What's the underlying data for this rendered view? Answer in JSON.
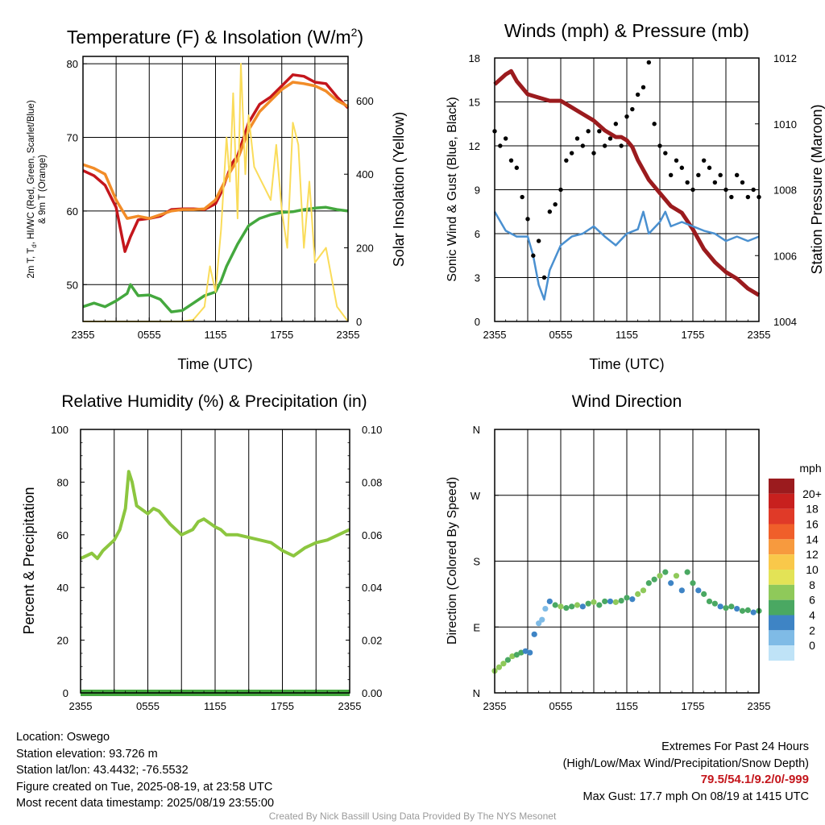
{
  "charts": {
    "temperature": {
      "title": "Temperature (F) & Insolation (W/m",
      "title_sup": "2",
      "title_close": ")",
      "left_axis_label_line1": "2m T, T",
      "left_axis_label_sub": "d",
      "left_axis_label_line1_rest": ", HI/WC (Red, Green, Scarlet/Blue)",
      "left_axis_label_line2": "& 9m T (Orange)",
      "right_axis_label": "Solar Insolation (Yellow)",
      "xlabel": "Time (UTC)"
    },
    "winds": {
      "title": "Winds (mph) & Pressure (mb)",
      "left_axis_label": "Sonic Wind & Gust (Blue, Black)",
      "right_axis_label": "Station Pressure (Maroon)",
      "xlabel": "Time (UTC)"
    },
    "humidity": {
      "title": "Relative Humidity (%) & Precipitation (in)",
      "left_axis_label": "Percent & Precipitation"
    },
    "direction": {
      "title": "Wind Direction",
      "left_axis_label": "Direction (Colored By Speed)",
      "legend_title": "mph",
      "legend_labels": [
        "20+",
        "18",
        "16",
        "14",
        "12",
        "10",
        "8",
        "6",
        "4",
        "2",
        "0"
      ],
      "legend_colors": [
        "#9b1b1e",
        "#c8201e",
        "#e03a28",
        "#f05f2a",
        "#f79a3e",
        "#f9c84a",
        "#e3e356",
        "#8fc95a",
        "#4aa862",
        "#3e84c5",
        "#7fbbe6",
        "#bfe3f7"
      ]
    }
  },
  "chart_data": [
    {
      "type": "line",
      "title": "Temperature (F) & Insolation (W/m2)",
      "xlabel": "Time (UTC)",
      "x_ticks": [
        "2355",
        "0555",
        "1155",
        "1755",
        "2355"
      ],
      "x_range_hours": [
        0,
        24
      ],
      "y_left": {
        "range": [
          45,
          81
        ],
        "ticks": [
          50,
          60,
          70,
          80
        ]
      },
      "y_right": {
        "label": "Solar Insolation (Yellow)",
        "range": [
          0,
          720
        ],
        "ticks": [
          0,
          200,
          400,
          600
        ]
      },
      "series": [
        {
          "color": "#c4161c",
          "axis": "left",
          "x": [
            0,
            1,
            2,
            3,
            3.8,
            4.3,
            5,
            6,
            7,
            8,
            9,
            10,
            11,
            12,
            12.5,
            13,
            13.5,
            14,
            15,
            16,
            17,
            18,
            19,
            20,
            21,
            22,
            23,
            24
          ],
          "y": [
            65.5,
            64.8,
            63.5,
            60.5,
            54.5,
            56.5,
            58.8,
            59.0,
            59.3,
            60.2,
            60.3,
            60.3,
            60.2,
            61.0,
            62.5,
            64.5,
            66.5,
            67.5,
            72.0,
            74.5,
            75.5,
            77.0,
            78.5,
            78.3,
            77.5,
            77.3,
            75.5,
            74.0
          ]
        },
        {
          "color": "#f28c28",
          "axis": "left",
          "x": [
            0,
            1,
            2,
            3,
            4,
            5,
            6,
            7,
            8,
            9,
            10,
            11,
            12,
            13,
            14,
            15,
            16,
            17,
            18,
            19,
            20,
            21,
            22,
            23,
            24
          ],
          "y": [
            66.3,
            65.8,
            65.0,
            61.5,
            59.0,
            59.3,
            59.0,
            59.5,
            60.0,
            60.2,
            60.2,
            60.3,
            61.5,
            64.5,
            67.0,
            71.0,
            73.5,
            75.0,
            76.5,
            77.5,
            77.3,
            77.0,
            76.3,
            75.0,
            74.2
          ]
        },
        {
          "color": "#44a83e",
          "axis": "left",
          "x": [
            0,
            1,
            2,
            3,
            4,
            4.3,
            5,
            6,
            7,
            8,
            9,
            10,
            11,
            12,
            12.5,
            13,
            14,
            15,
            16,
            17,
            18,
            19,
            20,
            21,
            22,
            23,
            24
          ],
          "y": [
            47.0,
            47.5,
            47.0,
            47.8,
            48.8,
            50.0,
            48.5,
            48.6,
            48.0,
            46.3,
            46.5,
            47.5,
            48.5,
            49.0,
            50.5,
            52.5,
            55.5,
            58.0,
            59.0,
            59.5,
            59.8,
            59.9,
            60.2,
            60.4,
            60.5,
            60.2,
            60.0
          ]
        },
        {
          "color": "#fadc5a",
          "axis": "right",
          "x": [
            0,
            9,
            10,
            11,
            11.5,
            12,
            12.5,
            13,
            13.3,
            13.6,
            14,
            14.3,
            14.7,
            15,
            15.5,
            16,
            16.5,
            17,
            17.5,
            18,
            18.5,
            19,
            19.5,
            20,
            20.5,
            21,
            22,
            23,
            24
          ],
          "y": [
            0,
            0,
            5,
            40,
            150,
            80,
            250,
            500,
            380,
            620,
            280,
            700,
            400,
            560,
            420,
            390,
            360,
            330,
            480,
            300,
            200,
            540,
            480,
            200,
            380,
            160,
            200,
            40,
            0
          ]
        }
      ]
    },
    {
      "type": "line",
      "title": "Winds (mph) & Pressure (mb)",
      "xlabel": "Time (UTC)",
      "x_ticks": [
        "2355",
        "0555",
        "1155",
        "1755",
        "2355"
      ],
      "x_range_hours": [
        0,
        24
      ],
      "y_left": {
        "label": "Sonic Wind & Gust (Blue, Black)",
        "range": [
          0,
          18
        ],
        "ticks": [
          0,
          3,
          6,
          9,
          12,
          15,
          18
        ]
      },
      "y_right": {
        "label": "Station Pressure (Maroon)",
        "range": [
          1004,
          1012
        ],
        "ticks": [
          1004,
          1006,
          1008,
          1010,
          1012
        ]
      },
      "series": [
        {
          "color": "#9b1b1e",
          "axis": "right",
          "x": [
            0,
            1,
            1.5,
            2,
            3,
            4,
            5,
            6,
            7,
            8,
            9,
            10,
            11,
            11.5,
            12,
            12.5,
            13,
            14,
            15,
            16,
            17,
            18,
            19,
            20,
            21,
            22,
            23,
            24
          ],
          "y": [
            1011.2,
            1011.5,
            1011.6,
            1011.3,
            1010.9,
            1010.8,
            1010.7,
            1010.7,
            1010.5,
            1010.3,
            1010.1,
            1009.8,
            1009.6,
            1009.6,
            1009.5,
            1009.3,
            1008.9,
            1008.3,
            1007.9,
            1007.5,
            1007.3,
            1006.8,
            1006.2,
            1005.8,
            1005.5,
            1005.3,
            1005.0,
            1004.8
          ]
        },
        {
          "color": "#4a90d0",
          "axis": "left",
          "x": [
            0,
            1,
            2,
            3,
            3.5,
            4,
            4.5,
            5,
            6,
            7,
            8,
            9,
            10,
            11,
            12,
            13,
            13.5,
            14,
            15,
            15.5,
            16,
            17,
            18,
            19,
            20,
            21,
            22,
            23,
            24
          ],
          "y": [
            7.5,
            6.2,
            5.8,
            5.8,
            4.5,
            2.5,
            1.5,
            3.5,
            5.2,
            5.8,
            6.0,
            6.5,
            5.8,
            5.2,
            6.0,
            6.3,
            7.5,
            6.0,
            6.8,
            7.5,
            6.5,
            6.8,
            6.5,
            6.2,
            6.0,
            5.5,
            5.8,
            5.5,
            5.8
          ]
        },
        {
          "color": "#000000",
          "axis": "left",
          "kind": "scatter",
          "name": "gust",
          "x": [
            0,
            0.5,
            1,
            1.5,
            2,
            2.5,
            3,
            3.5,
            4,
            4.5,
            5,
            5.5,
            6,
            6.5,
            7,
            7.5,
            8,
            8.5,
            9,
            9.5,
            10,
            10.5,
            11,
            11.5,
            12,
            12.5,
            13,
            13.5,
            14,
            14.5,
            15,
            15.5,
            16,
            16.5,
            17,
            17.5,
            18,
            18.5,
            19,
            19.5,
            20,
            20.5,
            21,
            21.5,
            22,
            22.5,
            23,
            23.5,
            24
          ],
          "y": [
            13,
            12,
            12.5,
            11,
            10.5,
            8.5,
            7,
            4.5,
            5.5,
            3,
            7.5,
            8,
            9,
            11,
            11.5,
            12.5,
            12,
            13,
            11.5,
            13,
            12,
            12.5,
            13.5,
            12,
            14,
            14.5,
            15.5,
            16,
            17.7,
            13.5,
            12,
            11.5,
            10,
            11,
            10.5,
            9.5,
            9,
            10,
            11,
            10.5,
            9.5,
            10,
            9,
            8.5,
            10,
            9.5,
            8.5,
            9,
            8.5
          ]
        }
      ]
    },
    {
      "type": "line",
      "title": "Relative Humidity (%) & Precipitation (in)",
      "x_ticks": [
        "2355",
        "0555",
        "1155",
        "1755",
        "2355"
      ],
      "x_range_hours": [
        0,
        24
      ],
      "y_left": {
        "label": "Percent & Precipitation",
        "range": [
          0,
          100
        ],
        "ticks": [
          0,
          20,
          40,
          60,
          80,
          100
        ]
      },
      "y_right": {
        "range": [
          0,
          0.1
        ],
        "ticks": [
          "0.00",
          "0.02",
          "0.04",
          "0.06",
          "0.08",
          "0.10"
        ]
      },
      "series": [
        {
          "color": "#8cc63f",
          "axis": "left",
          "x": [
            0,
            0.5,
            1,
            1.5,
            2,
            3,
            3.5,
            4,
            4.3,
            4.6,
            5,
            6,
            6.5,
            7,
            8,
            9,
            10,
            10.5,
            11,
            12,
            12.5,
            13,
            14,
            15,
            16,
            17,
            18,
            19,
            20,
            21,
            22,
            23,
            24
          ],
          "y": [
            51,
            52,
            53,
            51,
            54,
            58,
            62,
            70,
            84,
            80,
            71,
            68,
            70,
            69,
            64,
            60,
            62,
            65,
            66,
            63,
            62,
            60,
            60,
            59,
            58,
            57,
            54,
            52,
            55,
            57,
            58,
            60,
            62
          ]
        },
        {
          "color": "#44a83e",
          "axis": "left",
          "x": [
            0,
            24
          ],
          "y": [
            0,
            0
          ]
        }
      ]
    },
    {
      "type": "scatter",
      "title": "Wind Direction",
      "x_ticks": [
        "2355",
        "0555",
        "1155",
        "1755",
        "2355"
      ],
      "x_range_hours": [
        0,
        24
      ],
      "y_left": {
        "label": "Direction (Colored By Speed)",
        "ticks": [
          "N",
          "E",
          "S",
          "W",
          "N"
        ],
        "range_deg": [
          0,
          360
        ]
      },
      "points": [
        [
          0,
          30,
          8
        ],
        [
          0.4,
          35,
          7
        ],
        [
          0.8,
          40,
          8
        ],
        [
          1.2,
          45,
          6
        ],
        [
          1.6,
          50,
          7
        ],
        [
          2.0,
          52,
          6
        ],
        [
          2.4,
          55,
          5
        ],
        [
          2.8,
          57,
          4
        ],
        [
          3.2,
          55,
          3
        ],
        [
          3.6,
          80,
          4
        ],
        [
          4.0,
          95,
          2
        ],
        [
          4.3,
          100,
          1
        ],
        [
          4.6,
          115,
          2
        ],
        [
          5.0,
          125,
          4
        ],
        [
          5.5,
          120,
          5
        ],
        [
          6.0,
          118,
          7
        ],
        [
          6.5,
          116,
          5
        ],
        [
          7.0,
          118,
          6
        ],
        [
          7.5,
          120,
          7
        ],
        [
          8.0,
          118,
          4
        ],
        [
          8.5,
          122,
          6
        ],
        [
          9.0,
          124,
          7
        ],
        [
          9.5,
          120,
          5
        ],
        [
          10.0,
          125,
          6
        ],
        [
          10.5,
          125,
          4
        ],
        [
          11.0,
          124,
          7
        ],
        [
          11.5,
          126,
          5
        ],
        [
          12.0,
          130,
          6
        ],
        [
          12.5,
          128,
          4
        ],
        [
          13.0,
          135,
          7
        ],
        [
          13.5,
          140,
          8
        ],
        [
          14.0,
          150,
          5
        ],
        [
          14.5,
          155,
          6
        ],
        [
          15.0,
          160,
          8
        ],
        [
          15.5,
          165,
          5
        ],
        [
          16.0,
          150,
          4
        ],
        [
          16.5,
          160,
          7
        ],
        [
          17.0,
          140,
          4
        ],
        [
          17.5,
          165,
          6
        ],
        [
          18.0,
          150,
          5
        ],
        [
          18.5,
          140,
          4
        ],
        [
          19.0,
          135,
          5
        ],
        [
          19.5,
          125,
          6
        ],
        [
          20.0,
          122,
          5
        ],
        [
          20.5,
          118,
          4
        ],
        [
          21.0,
          116,
          6
        ],
        [
          21.5,
          118,
          5
        ],
        [
          22.0,
          115,
          4
        ],
        [
          22.5,
          112,
          6
        ],
        [
          23.0,
          113,
          5
        ],
        [
          23.5,
          110,
          4
        ],
        [
          24.0,
          112,
          5
        ]
      ]
    }
  ],
  "footer": {
    "location": "Location: Oswego",
    "elevation": "Station elevation: 93.726 m",
    "latlon": "Station lat/lon: 43.4432; -76.5532",
    "created": "Figure created on Tue, 2025-08-19, at 23:58 UTC",
    "recent": "Most recent data timestamp: 2025/08/19 23:55:00",
    "extremes_title": "Extremes For Past 24 Hours",
    "extremes_subtitle": "(High/Low/Max Wind/Precipitation/Snow Depth)",
    "extremes_values": "79.5/54.1/9.2/0/-999",
    "max_gust": "Max Gust: 17.7 mph On 08/19 at 1415 UTC",
    "credit": "Created By Nick Bassill Using Data Provided By The NYS Mesonet"
  }
}
